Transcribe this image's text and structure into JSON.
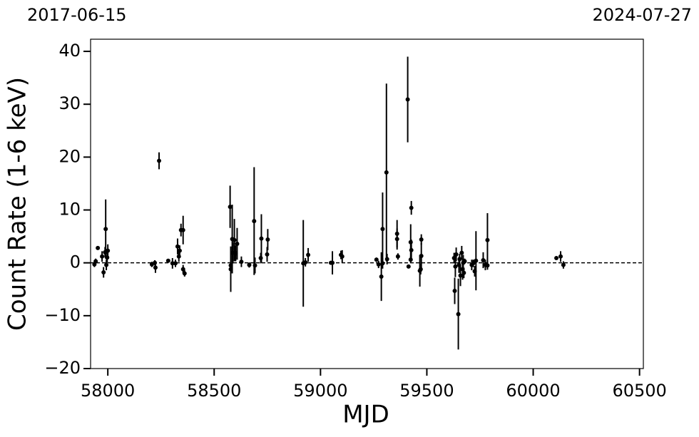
{
  "chart_data": {
    "type": "errorbar-scatter",
    "top_labels": [
      "2017-06-15",
      "2024-07-27"
    ],
    "x_label": "MJD",
    "y_label": "Count Rate (1-6 keV)",
    "xlim": [
      57919,
      60518
    ],
    "ylim": [
      -20,
      42.3
    ],
    "xticks": [
      58000,
      58500,
      59000,
      59500,
      60000,
      60500
    ],
    "yticks": [
      {
        "value": -20,
        "label": "−20"
      },
      {
        "value": -10,
        "label": "−10"
      },
      0,
      10,
      20,
      30,
      40
    ],
    "reference_line": 0,
    "color": "#000000",
    "x": [
      57937,
      57943,
      57953,
      57973,
      57980,
      57987,
      57990,
      57993,
      58000,
      57997,
      58207,
      58221,
      58224,
      58241,
      58284,
      58304,
      58318,
      58328,
      58334,
      58338,
      58344,
      58354,
      58354,
      58361,
      58575,
      58578,
      58578,
      58585,
      58588,
      58595,
      58601,
      58608,
      58628,
      58665,
      58688,
      58692,
      58719,
      58722,
      58749,
      58752,
      58919,
      58929,
      58942,
      59049,
      59056,
      59096,
      59102,
      59263,
      59273,
      59286,
      59292,
      59292,
      59310,
      59313,
      59360,
      59360,
      59364,
      59410,
      59414,
      59424,
      59427,
      59427,
      59424,
      59467,
      59471,
      59474,
      59474,
      59628,
      59631,
      59634,
      59638,
      59648,
      59651,
      59654,
      59658,
      59664,
      59668,
      59671,
      59674,
      59678,
      59711,
      59718,
      59725,
      59731,
      59765,
      59775,
      59785,
      59785,
      60109,
      60129,
      60142
    ],
    "values": [
      -0.3,
      0.3,
      2.8,
      1.2,
      -1.8,
      2,
      6.4,
      -0.4,
      2.3,
      1,
      -0.3,
      0,
      -0.9,
      19.3,
      0.4,
      -0.1,
      -0.1,
      3.1,
      1.2,
      2.3,
      6.2,
      6.2,
      -1.2,
      -2,
      10.6,
      -1.2,
      -0.5,
      4.5,
      1.9,
      4.3,
      1.8,
      3.6,
      0.2,
      -0.4,
      7.9,
      -0.5,
      0.9,
      4.6,
      1.6,
      4.4,
      -0.1,
      0.1,
      1.5,
      0,
      0,
      1.5,
      1.2,
      0.6,
      -0.3,
      -2.6,
      6.4,
      -0.1,
      17.1,
      0.7,
      5.5,
      4.5,
      1.2,
      30.9,
      -0.7,
      3.9,
      2.4,
      10.4,
      0.6,
      -1.5,
      -1.2,
      4.4,
      1.3,
      0.9,
      -5.3,
      -0.7,
      1.6,
      -9.7,
      -0.4,
      0.7,
      -2.4,
      1.9,
      -1.2,
      0,
      -1.9,
      0.3,
      -0.4,
      -0.1,
      -1.6,
      0.4,
      0.5,
      -0.4,
      4.3,
      -0.5,
      0.9,
      1.2,
      -0.4
    ],
    "errors": [
      0.5,
      0.5,
      0.3,
      1,
      1,
      1,
      5.6,
      1,
      1.2,
      1,
      0.5,
      0.5,
      1,
      1.6,
      0.3,
      1,
      0.7,
      1.5,
      1,
      1,
      1.2,
      2.7,
      0.8,
      0.6,
      4,
      4.3,
      1,
      6.5,
      2,
      4,
      1.5,
      3,
      1,
      0.5,
      10.2,
      1.5,
      1,
      4.6,
      1.4,
      2,
      8.2,
      0.8,
      1.3,
      0.3,
      2.2,
      0.8,
      1.2,
      0.4,
      0.7,
      4.6,
      6.9,
      1,
      16.8,
      1,
      2.6,
      2,
      0.6,
      8.1,
      0.3,
      3.4,
      2,
      1.3,
      0.6,
      3,
      1,
      1,
      2.5,
      1,
      2.5,
      2,
      1.3,
      6.7,
      1.5,
      1,
      2,
      1.3,
      2,
      1.5,
      1,
      0.5,
      1,
      0.7,
      1,
      5.6,
      1.5,
      1,
      5.1,
      0.8,
      0.3,
      1,
      0.7
    ]
  }
}
